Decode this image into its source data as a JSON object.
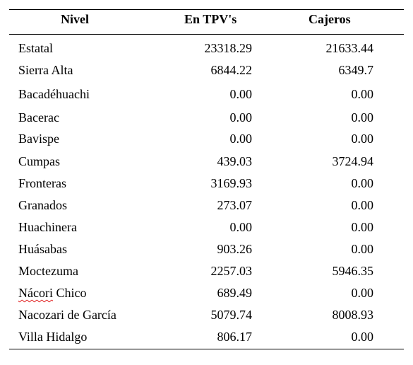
{
  "table": {
    "headers": {
      "nivel": "Nivel",
      "tpv": "En TPV's",
      "cajeros": "Cajeros"
    },
    "rows": [
      {
        "nivel": "Estatal",
        "tpv": "23318.29",
        "cajeros": "21633.44"
      },
      {
        "nivel": "Sierra Alta",
        "tpv": "6844.22",
        "cajeros": "6349.7"
      },
      {
        "nivel": "Bacadéhuachi",
        "tpv": "0.00",
        "cajeros": "0.00"
      },
      {
        "nivel": "Bacerac",
        "tpv": "0.00",
        "cajeros": "0.00"
      },
      {
        "nivel": "Bavispe",
        "tpv": "0.00",
        "cajeros": "0.00"
      },
      {
        "nivel": "Cumpas",
        "tpv": "439.03",
        "cajeros": "3724.94"
      },
      {
        "nivel": "Fronteras",
        "tpv": "3169.93",
        "cajeros": "0.00"
      },
      {
        "nivel": "Granados",
        "tpv": "273.07",
        "cajeros": "0.00"
      },
      {
        "nivel": "Huachinera",
        "tpv": "0.00",
        "cajeros": "0.00"
      },
      {
        "nivel": "Huásabas",
        "tpv": "903.26",
        "cajeros": "0.00"
      },
      {
        "nivel": "Moctezuma",
        "tpv": "2257.03",
        "cajeros": "5946.35"
      },
      {
        "nivel_first_word": "Nácori",
        "nivel_rest": " Chico",
        "tpv": "689.49",
        "cajeros": "0.00"
      },
      {
        "nivel": "Nacozari de García",
        "tpv": "5079.74",
        "cajeros": "8008.93"
      },
      {
        "nivel": "Villa Hidalgo",
        "tpv": "806.17",
        "cajeros": "0.00"
      }
    ]
  }
}
